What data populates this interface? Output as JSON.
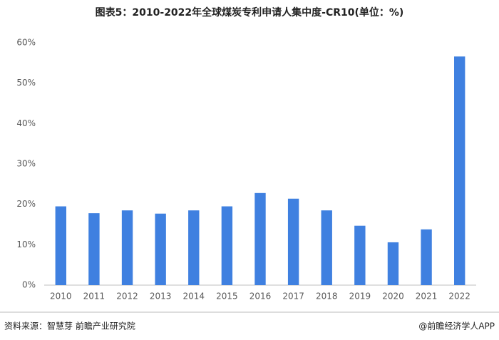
{
  "chart_data": {
    "type": "bar",
    "title": "图表5：2010-2022年全球煤炭专利申请人集中度-CR10(单位：%)",
    "categories": [
      "2010",
      "2011",
      "2012",
      "2013",
      "2014",
      "2015",
      "2016",
      "2017",
      "2018",
      "2019",
      "2020",
      "2021",
      "2022"
    ],
    "values": [
      19.5,
      17.8,
      18.5,
      17.7,
      18.5,
      19.5,
      22.8,
      21.4,
      18.5,
      14.7,
      10.6,
      13.8,
      56.6
    ],
    "color": "#3f80e0",
    "ylim": [
      0,
      60
    ],
    "yticks": [
      {
        "value": 0,
        "label": "0%"
      },
      {
        "value": 10,
        "label": "10%"
      },
      {
        "value": 20,
        "label": "20%"
      },
      {
        "value": 30,
        "label": "30%"
      },
      {
        "value": 40,
        "label": "40%"
      },
      {
        "value": 50,
        "label": "50%"
      },
      {
        "value": 60,
        "label": "60%"
      }
    ],
    "grid": false,
    "source": "资料来源：智慧芽 前瞻产业研究院",
    "credit": "@前瞻经济学人APP"
  }
}
